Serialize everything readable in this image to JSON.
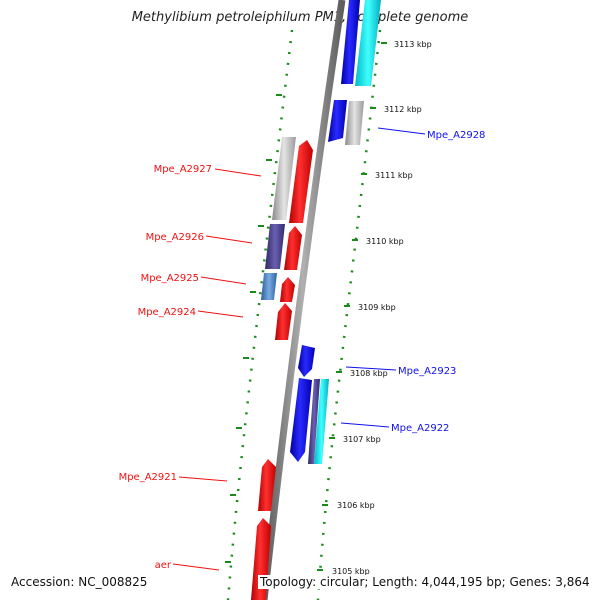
{
  "title": "Methylibium petroleiphilum PM1, complete genome",
  "accession": "Accession: NC_008825",
  "topology": "Topology: circular; Length: 4,044,195 bp; Genes: 3,864",
  "colors": {
    "forward_gene": "#ee1111",
    "reverse_gene": "#1010ee",
    "backbone": "#888888",
    "tick_dots": "#1a8a1a",
    "cyan_gene": "#22dddd",
    "grey_gene": "#c8c8c8",
    "purple_gene": "#4a3f8f",
    "steelblue_gene": "#4a7fc0"
  },
  "scale_labels": [
    "3113 kbp",
    "3112 kbp",
    "3111 kbp",
    "3110 kbp",
    "3109 kbp",
    "3108 kbp",
    "3107 kbp",
    "3106 kbp",
    "3105 kbp"
  ],
  "left_labels": [
    "Mpe_A2927",
    "Mpe_A2926",
    "Mpe_A2925",
    "Mpe_A2924",
    "Mpe_A2921",
    "aer"
  ],
  "right_labels": [
    "Mpe_A2928",
    "Mpe_A2923",
    "Mpe_A2922"
  ]
}
